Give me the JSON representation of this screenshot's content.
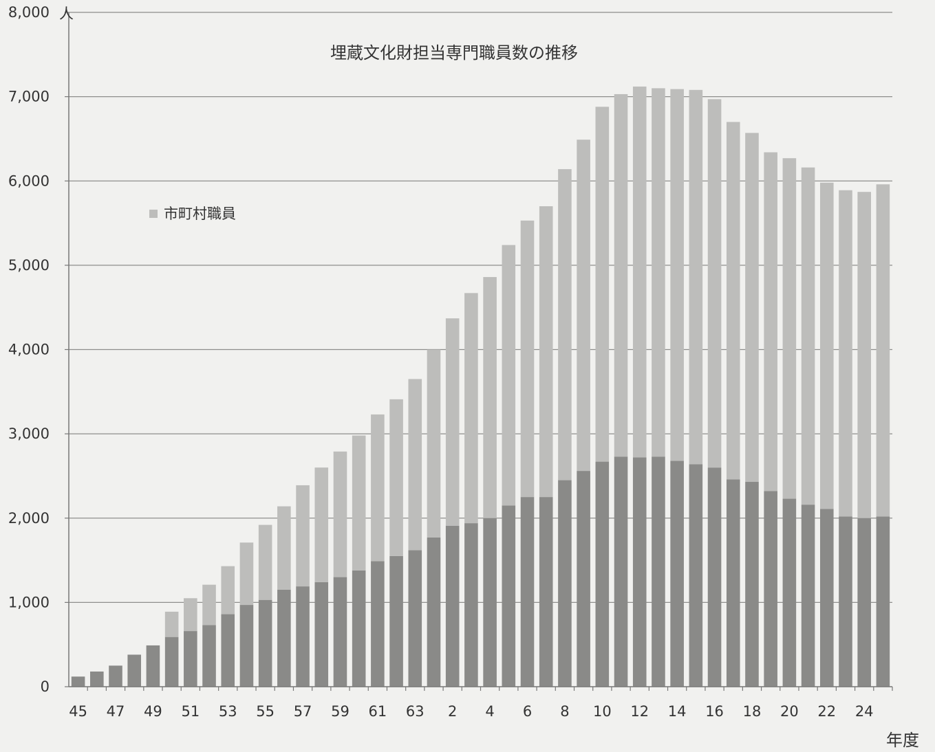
{
  "chart_data": {
    "type": "bar",
    "stacked": true,
    "title": "埋蔵文化財担当専門職員数の推移",
    "xlabel": "年度",
    "ylabel": "人",
    "ylim": [
      0,
      8000
    ],
    "yticks": [
      0,
      1000,
      2000,
      3000,
      4000,
      5000,
      6000,
      7000,
      8000
    ],
    "ytick_labels": [
      "0",
      "1,000",
      "2,000",
      "3,000",
      "4,000",
      "5,000",
      "6,000",
      "7,000",
      "8,000"
    ],
    "grid": true,
    "legend_position": "upper-left",
    "categories": [
      "45",
      "46",
      "47",
      "48",
      "49",
      "50",
      "51",
      "52",
      "53",
      "54",
      "55",
      "56",
      "57",
      "58",
      "59",
      "60",
      "61",
      "62",
      "63",
      "1",
      "2",
      "3",
      "4",
      "5",
      "6",
      "7",
      "8",
      "9",
      "10",
      "11",
      "12",
      "13",
      "14",
      "15",
      "16",
      "17",
      "18",
      "19",
      "20",
      "21",
      "22",
      "23",
      "24",
      "25"
    ],
    "xtick_labels": [
      "45",
      "",
      "47",
      "",
      "49",
      "",
      "51",
      "",
      "53",
      "",
      "55",
      "",
      "57",
      "",
      "59",
      "",
      "61",
      "",
      "63",
      "",
      "2",
      "",
      "4",
      "",
      "6",
      "",
      "8",
      "",
      "10",
      "",
      "12",
      "",
      "14",
      "",
      "16",
      "",
      "18",
      "",
      "20",
      "",
      "22",
      "",
      "24",
      ""
    ],
    "series": [
      {
        "name": "",
        "color": "#8a8a88",
        "values": [
          120,
          180,
          250,
          380,
          490,
          590,
          660,
          730,
          860,
          970,
          1030,
          1150,
          1190,
          1240,
          1300,
          1380,
          1490,
          1550,
          1620,
          1770,
          1910,
          1940,
          2000,
          2150,
          2250,
          2250,
          2450,
          2560,
          2670,
          2730,
          2720,
          2730,
          2680,
          2640,
          2600,
          2460,
          2430,
          2320,
          2230,
          2160,
          2110,
          2020,
          2000,
          2020
        ]
      },
      {
        "name": "市町村職員",
        "color": "#bdbdbb",
        "values": [
          0,
          0,
          0,
          0,
          0,
          300,
          390,
          480,
          570,
          740,
          890,
          990,
          1200,
          1360,
          1490,
          1600,
          1740,
          1860,
          2030,
          2230,
          2460,
          2730,
          2860,
          3090,
          3280,
          3450,
          3690,
          3930,
          4210,
          4300,
          4400,
          4370,
          4410,
          4440,
          4370,
          4240,
          4140,
          4020,
          4040,
          4000,
          3870,
          3870,
          3870,
          3940
        ]
      }
    ]
  }
}
